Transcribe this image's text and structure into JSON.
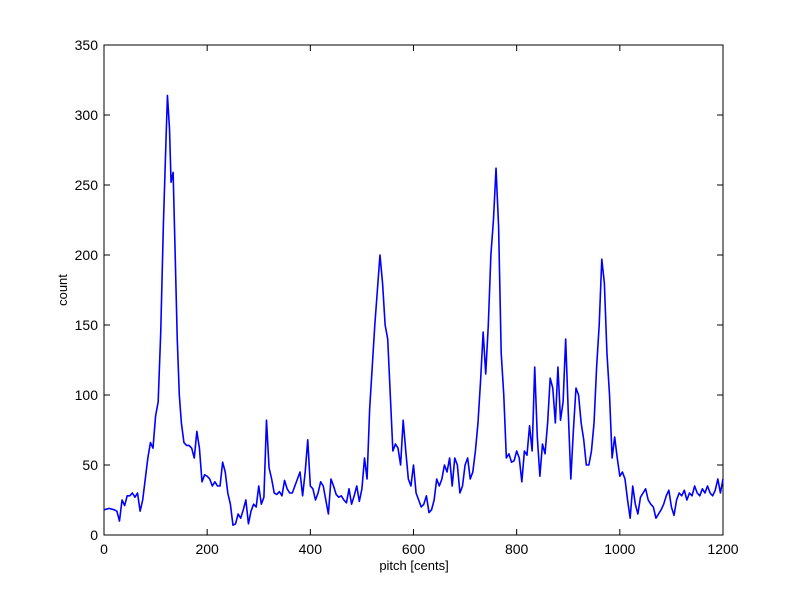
{
  "chart_data": {
    "type": "line",
    "title": "",
    "xlabel": "pitch [cents]",
    "ylabel": "count",
    "xlim": [
      0,
      1200
    ],
    "ylim": [
      0,
      350
    ],
    "xticks": [
      0,
      200,
      400,
      600,
      800,
      1000,
      1200
    ],
    "yticks": [
      0,
      50,
      100,
      150,
      200,
      250,
      300,
      350
    ],
    "xtick_labels": [
      "0",
      "200",
      "400",
      "600",
      "800",
      "1000",
      "1200"
    ],
    "ytick_labels": [
      "0",
      "50",
      "100",
      "150",
      "200",
      "250",
      "300",
      "350"
    ],
    "grid": false,
    "legend": "none",
    "line_color": "#0000ff",
    "series": [
      {
        "values": [
          [
            0,
            18
          ],
          [
            10,
            19
          ],
          [
            20,
            18
          ],
          [
            25,
            17
          ],
          [
            30,
            10
          ],
          [
            35,
            25
          ],
          [
            40,
            21
          ],
          [
            45,
            28
          ],
          [
            50,
            28
          ],
          [
            55,
            30
          ],
          [
            60,
            27
          ],
          [
            65,
            30
          ],
          [
            70,
            17
          ],
          [
            75,
            25
          ],
          [
            80,
            40
          ],
          [
            85,
            55
          ],
          [
            90,
            66
          ],
          [
            95,
            62
          ],
          [
            100,
            85
          ],
          [
            105,
            95
          ],
          [
            110,
            145
          ],
          [
            115,
            220
          ],
          [
            120,
            280
          ],
          [
            123,
            314
          ],
          [
            127,
            290
          ],
          [
            130,
            252
          ],
          [
            134,
            259
          ],
          [
            138,
            200
          ],
          [
            142,
            140
          ],
          [
            146,
            100
          ],
          [
            150,
            80
          ],
          [
            155,
            66
          ],
          [
            160,
            64
          ],
          [
            165,
            64
          ],
          [
            170,
            62
          ],
          [
            175,
            55
          ],
          [
            180,
            74
          ],
          [
            185,
            62
          ],
          [
            190,
            38
          ],
          [
            195,
            43
          ],
          [
            200,
            42
          ],
          [
            205,
            40
          ],
          [
            210,
            35
          ],
          [
            215,
            38
          ],
          [
            220,
            35
          ],
          [
            225,
            35
          ],
          [
            230,
            52
          ],
          [
            235,
            45
          ],
          [
            240,
            30
          ],
          [
            245,
            22
          ],
          [
            250,
            7
          ],
          [
            255,
            8
          ],
          [
            260,
            15
          ],
          [
            265,
            12
          ],
          [
            270,
            18
          ],
          [
            275,
            25
          ],
          [
            280,
            8
          ],
          [
            285,
            17
          ],
          [
            290,
            22
          ],
          [
            295,
            20
          ],
          [
            300,
            35
          ],
          [
            305,
            22
          ],
          [
            310,
            27
          ],
          [
            315,
            82
          ],
          [
            320,
            48
          ],
          [
            325,
            40
          ],
          [
            330,
            30
          ],
          [
            335,
            29
          ],
          [
            340,
            31
          ],
          [
            345,
            28
          ],
          [
            350,
            39
          ],
          [
            355,
            33
          ],
          [
            360,
            30
          ],
          [
            365,
            30
          ],
          [
            370,
            35
          ],
          [
            375,
            40
          ],
          [
            380,
            45
          ],
          [
            385,
            28
          ],
          [
            390,
            45
          ],
          [
            395,
            68
          ],
          [
            400,
            35
          ],
          [
            405,
            33
          ],
          [
            410,
            25
          ],
          [
            415,
            30
          ],
          [
            420,
            38
          ],
          [
            425,
            35
          ],
          [
            430,
            25
          ],
          [
            435,
            15
          ],
          [
            440,
            40
          ],
          [
            445,
            35
          ],
          [
            450,
            29
          ],
          [
            455,
            27
          ],
          [
            460,
            28
          ],
          [
            465,
            25
          ],
          [
            470,
            23
          ],
          [
            475,
            33
          ],
          [
            480,
            22
          ],
          [
            485,
            28
          ],
          [
            490,
            35
          ],
          [
            495,
            24
          ],
          [
            500,
            33
          ],
          [
            505,
            55
          ],
          [
            510,
            40
          ],
          [
            515,
            90
          ],
          [
            520,
            120
          ],
          [
            525,
            150
          ],
          [
            530,
            175
          ],
          [
            535,
            200
          ],
          [
            540,
            180
          ],
          [
            545,
            150
          ],
          [
            550,
            140
          ],
          [
            555,
            100
          ],
          [
            560,
            60
          ],
          [
            565,
            65
          ],
          [
            570,
            62
          ],
          [
            575,
            50
          ],
          [
            580,
            82
          ],
          [
            585,
            60
          ],
          [
            590,
            40
          ],
          [
            595,
            35
          ],
          [
            600,
            50
          ],
          [
            605,
            30
          ],
          [
            610,
            25
          ],
          [
            615,
            20
          ],
          [
            620,
            22
          ],
          [
            625,
            28
          ],
          [
            630,
            16
          ],
          [
            635,
            18
          ],
          [
            640,
            25
          ],
          [
            645,
            40
          ],
          [
            650,
            35
          ],
          [
            655,
            40
          ],
          [
            660,
            50
          ],
          [
            665,
            45
          ],
          [
            670,
            55
          ],
          [
            675,
            35
          ],
          [
            680,
            55
          ],
          [
            685,
            50
          ],
          [
            690,
            30
          ],
          [
            695,
            35
          ],
          [
            700,
            50
          ],
          [
            705,
            55
          ],
          [
            710,
            40
          ],
          [
            715,
            45
          ],
          [
            720,
            60
          ],
          [
            725,
            80
          ],
          [
            730,
            110
          ],
          [
            735,
            145
          ],
          [
            740,
            115
          ],
          [
            745,
            150
          ],
          [
            750,
            200
          ],
          [
            755,
            225
          ],
          [
            760,
            262
          ],
          [
            765,
            220
          ],
          [
            770,
            130
          ],
          [
            775,
            100
          ],
          [
            780,
            55
          ],
          [
            785,
            58
          ],
          [
            790,
            52
          ],
          [
            795,
            53
          ],
          [
            800,
            60
          ],
          [
            805,
            55
          ],
          [
            810,
            38
          ],
          [
            815,
            60
          ],
          [
            820,
            57
          ],
          [
            825,
            78
          ],
          [
            830,
            60
          ],
          [
            835,
            120
          ],
          [
            840,
            70
          ],
          [
            845,
            42
          ],
          [
            850,
            65
          ],
          [
            855,
            58
          ],
          [
            860,
            80
          ],
          [
            865,
            112
          ],
          [
            870,
            105
          ],
          [
            875,
            80
          ],
          [
            880,
            120
          ],
          [
            885,
            82
          ],
          [
            890,
            95
          ],
          [
            895,
            140
          ],
          [
            900,
            88
          ],
          [
            905,
            40
          ],
          [
            910,
            75
          ],
          [
            915,
            105
          ],
          [
            920,
            100
          ],
          [
            925,
            80
          ],
          [
            930,
            68
          ],
          [
            935,
            50
          ],
          [
            940,
            50
          ],
          [
            945,
            60
          ],
          [
            950,
            80
          ],
          [
            955,
            120
          ],
          [
            960,
            150
          ],
          [
            965,
            197
          ],
          [
            970,
            180
          ],
          [
            975,
            130
          ],
          [
            980,
            100
          ],
          [
            985,
            55
          ],
          [
            990,
            70
          ],
          [
            995,
            55
          ],
          [
            1000,
            42
          ],
          [
            1005,
            45
          ],
          [
            1010,
            40
          ],
          [
            1015,
            25
          ],
          [
            1020,
            12
          ],
          [
            1025,
            35
          ],
          [
            1030,
            22
          ],
          [
            1035,
            15
          ],
          [
            1040,
            27
          ],
          [
            1045,
            30
          ],
          [
            1050,
            33
          ],
          [
            1055,
            25
          ],
          [
            1060,
            22
          ],
          [
            1065,
            20
          ],
          [
            1070,
            12
          ],
          [
            1075,
            15
          ],
          [
            1080,
            18
          ],
          [
            1085,
            22
          ],
          [
            1090,
            28
          ],
          [
            1095,
            32
          ],
          [
            1100,
            20
          ],
          [
            1105,
            14
          ],
          [
            1110,
            25
          ],
          [
            1115,
            30
          ],
          [
            1120,
            28
          ],
          [
            1125,
            32
          ],
          [
            1130,
            25
          ],
          [
            1135,
            30
          ],
          [
            1140,
            28
          ],
          [
            1145,
            35
          ],
          [
            1150,
            30
          ],
          [
            1155,
            28
          ],
          [
            1160,
            33
          ],
          [
            1165,
            30
          ],
          [
            1170,
            35
          ],
          [
            1175,
            30
          ],
          [
            1180,
            28
          ],
          [
            1185,
            32
          ],
          [
            1190,
            40
          ],
          [
            1195,
            30
          ],
          [
            1200,
            40
          ]
        ]
      }
    ]
  }
}
